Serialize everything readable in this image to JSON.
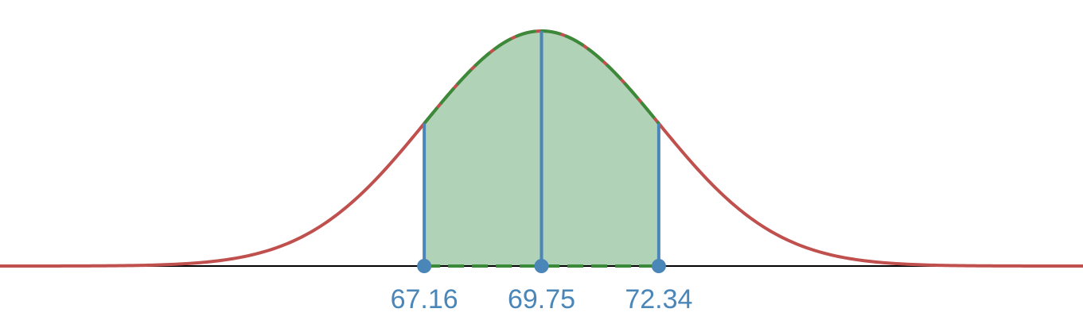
{
  "chart_data": {
    "type": "area",
    "distribution": "normal",
    "mean": 69.75,
    "sd": 2.59,
    "xlim": [
      57.79,
      81.71
    ],
    "shaded_range": [
      67.16,
      72.34
    ],
    "marked_points": [
      67.16,
      69.75,
      72.34
    ],
    "tick_labels": [
      "67.16",
      "69.75",
      "72.34"
    ],
    "grid": false,
    "colors": {
      "curve": "#c0504d",
      "shaded_fill": "#b0d3b8",
      "shaded_outline": "#3a8a3a",
      "markers": "#4a86b8",
      "axis": "#000000"
    }
  }
}
